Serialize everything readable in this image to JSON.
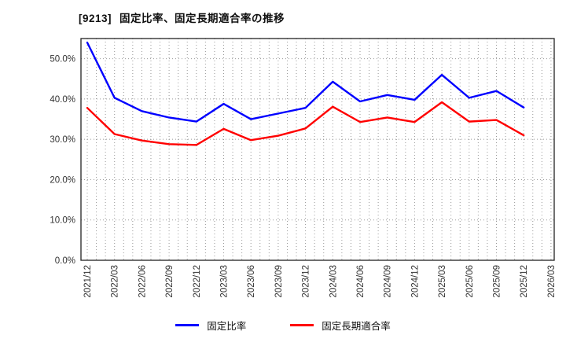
{
  "header": {
    "ticker": "[9213]",
    "page_title": "固定比率、固定長期適合率の推移"
  },
  "chart_data": {
    "type": "line",
    "title": "[9213] 固定比率、固定長期適合率の推移",
    "categories": [
      "2021/12",
      "2022/03",
      "2022/06",
      "2022/09",
      "2022/12",
      "2023/03",
      "2023/06",
      "2023/09",
      "2023/12",
      "2024/03",
      "2024/06",
      "2024/09",
      "2024/12",
      "2025/03",
      "2025/06",
      "2025/09",
      "2025/12",
      "2026/03"
    ],
    "series": [
      {
        "name": "固定比率",
        "color": "#0000ff",
        "values": [
          54.0,
          40.3,
          37.0,
          35.4,
          34.4,
          38.8,
          35.0,
          36.4,
          37.8,
          44.3,
          39.4,
          41.0,
          39.8,
          46.0,
          40.3,
          42.0,
          37.9
        ]
      },
      {
        "name": "固定長期適合率",
        "color": "#ff0000",
        "values": [
          37.8,
          31.3,
          29.7,
          28.8,
          28.6,
          32.6,
          29.8,
          30.9,
          32.7,
          38.1,
          34.3,
          35.4,
          34.3,
          39.2,
          34.4,
          34.8,
          31.0
        ]
      }
    ],
    "ylim": [
      0,
      55
    ],
    "yticks": [
      {
        "value": 0,
        "label": "0.0%"
      },
      {
        "value": 10,
        "label": "10.0%"
      },
      {
        "value": 20,
        "label": "20.0%"
      },
      {
        "value": 30,
        "label": "30.0%"
      },
      {
        "value": 40,
        "label": "40.0%"
      },
      {
        "value": 50,
        "label": "50.0%"
      }
    ],
    "grid": "dotted gray; horizontal every 10%, vertical monthly (3 per quarter)",
    "legend_position": "bottom-center",
    "colors": {
      "axis_border": "#222222",
      "grid": "#999999",
      "tick_text": "#333333"
    }
  }
}
